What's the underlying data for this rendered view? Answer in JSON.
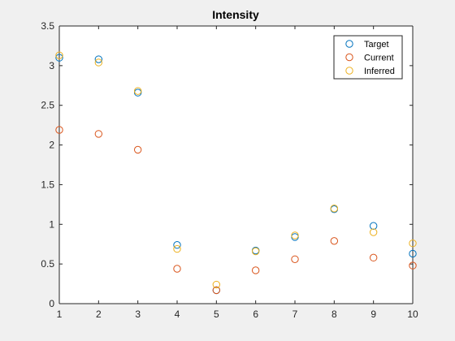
{
  "chart_data": {
    "type": "scatter",
    "title": "Intensity",
    "xlabel": "",
    "ylabel": "",
    "xlim": [
      1,
      10
    ],
    "ylim": [
      0,
      3.5
    ],
    "xticks": [
      "1",
      "2",
      "3",
      "4",
      "5",
      "6",
      "7",
      "8",
      "9",
      "10"
    ],
    "yticks": [
      "0",
      "0.5",
      "1",
      "1.5",
      "2",
      "2.5",
      "3",
      "3.5"
    ],
    "x": [
      1,
      2,
      3,
      4,
      5,
      6,
      7,
      8,
      9,
      10
    ],
    "series": [
      {
        "name": "Target",
        "color": "#0072BD",
        "values": [
          3.1,
          3.08,
          2.66,
          0.74,
          0.17,
          0.67,
          0.84,
          1.19,
          0.98,
          0.63
        ]
      },
      {
        "name": "Current",
        "color": "#D95319",
        "values": [
          2.19,
          2.14,
          1.94,
          0.44,
          0.17,
          0.42,
          0.56,
          0.79,
          0.58,
          0.48
        ]
      },
      {
        "name": "Inferred",
        "color": "#EDB120",
        "values": [
          3.13,
          3.04,
          2.68,
          0.69,
          0.24,
          0.66,
          0.86,
          1.2,
          0.9,
          0.76
        ]
      }
    ],
    "legend_position": "top-right",
    "grid": false,
    "marker": "open-circle"
  }
}
